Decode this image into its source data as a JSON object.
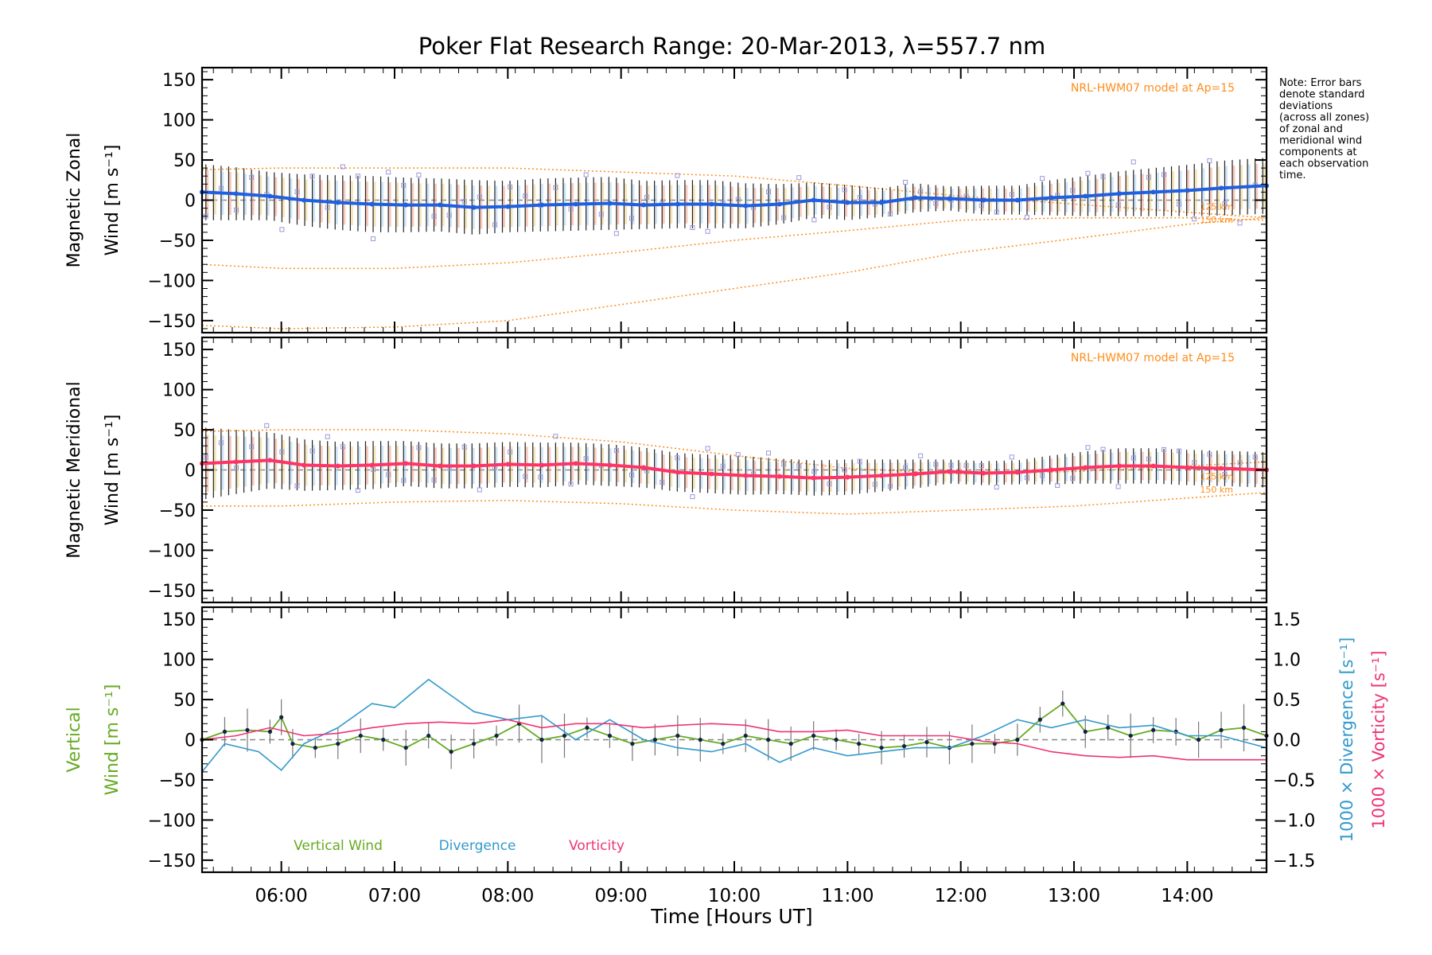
{
  "chart_data": {
    "type": "line",
    "title": "Poker Flat Research Range: 20-Mar-2013, λ=557.7 nm",
    "xlabel": "Time [Hours UT]",
    "xlim": [
      5.3,
      14.7
    ],
    "x_ticks": [
      6,
      7,
      8,
      9,
      10,
      11,
      12,
      13,
      14
    ],
    "x_tick_labels": [
      "06:00",
      "07:00",
      "08:00",
      "09:00",
      "10:00",
      "11:00",
      "12:00",
      "13:00",
      "14:00"
    ],
    "note": [
      "Note: Error bars",
      "denote standard",
      "deviations",
      "(across all zones)",
      "of zonal and",
      "meridional wind",
      "components at",
      "each observation",
      "time."
    ],
    "colors": {
      "zonal": "#1f5fe0",
      "meridional": "#ff3366",
      "vertical": "#66aa22",
      "divergence": "#3399cc",
      "vorticity": "#ee3377",
      "model": "#ff8c1a",
      "scatter": "#9999dd",
      "errbar": "#222222"
    },
    "panels": [
      {
        "id": "zonal",
        "ylabel": "Magnetic Zonal",
        "ylabel2": "Wind [m s⁻¹]",
        "ylim": [
          -165,
          165
        ],
        "y_ticks": [
          -150,
          -100,
          -50,
          0,
          50,
          100,
          150
        ],
        "y_tick_labels": [
          "−150",
          "−100",
          "−50",
          "0",
          "50",
          "100",
          "150"
        ],
        "model_label": "NRL-HWM07 model at Ap=15",
        "model_alt_labels": [
          "125 km",
          "150 km"
        ],
        "mean_series": {
          "name": "Zonal wind",
          "x": [
            5.3,
            5.6,
            5.9,
            6.2,
            6.5,
            6.8,
            7.1,
            7.4,
            7.7,
            8.0,
            8.3,
            8.6,
            8.9,
            9.2,
            9.5,
            9.8,
            10.1,
            10.4,
            10.7,
            11.0,
            11.3,
            11.6,
            11.9,
            12.2,
            12.5,
            12.8,
            13.1,
            13.4,
            13.7,
            14.0,
            14.3,
            14.7
          ],
          "y": [
            10,
            8,
            5,
            0,
            -3,
            -5,
            -6,
            -6,
            -9,
            -8,
            -6,
            -5,
            -4,
            -6,
            -5,
            -5,
            -7,
            -5,
            0,
            -3,
            -3,
            3,
            2,
            0,
            0,
            3,
            5,
            8,
            10,
            12,
            15,
            18
          ]
        },
        "error_bar_std": [
          35,
          33,
          30,
          32,
          34,
          35,
          34,
          33,
          34,
          32,
          33,
          33,
          33,
          30,
          30,
          30,
          28,
          25,
          22,
          22,
          18,
          18,
          15,
          18,
          18,
          22,
          25,
          28,
          30,
          32,
          34,
          35
        ],
        "model_curves": [
          {
            "x": [
              5.3,
              6.0,
              7.0,
              8.0,
              9.0,
              10.0,
              11.0,
              12.0,
              13.0,
              14.0,
              14.7
            ],
            "y": [
              38,
              40,
              40,
              40,
              35,
              30,
              18,
              5,
              -5,
              -15,
              -22
            ]
          },
          {
            "x": [
              5.3,
              6.0,
              7.0,
              8.0,
              9.0,
              10.0,
              11.0,
              12.0,
              13.0,
              14.0,
              14.7
            ],
            "y": [
              -80,
              -85,
              -85,
              -78,
              -65,
              -50,
              -38,
              -25,
              -22,
              -22,
              -25
            ]
          },
          {
            "x": [
              5.3,
              6.0,
              7.0,
              8.0,
              9.0,
              10.0,
              11.0,
              12.0,
              13.0,
              14.0,
              14.7
            ],
            "y": [
              -156,
              -160,
              -158,
              -150,
              -130,
              -110,
              -90,
              -65,
              -48,
              -30,
              -22
            ]
          }
        ]
      },
      {
        "id": "meridional",
        "ylabel": "Magnetic Meridional",
        "ylabel2": "Wind [m s⁻¹]",
        "ylim": [
          -165,
          165
        ],
        "y_ticks": [
          -150,
          -100,
          -50,
          0,
          50,
          100,
          150
        ],
        "y_tick_labels": [
          "−150",
          "−100",
          "−50",
          "0",
          "50",
          "100",
          "150"
        ],
        "model_label": "NRL-HWM07 model at Ap=15",
        "model_alt_labels": [
          "125 km",
          "150 km"
        ],
        "mean_series": {
          "name": "Meridional wind",
          "x": [
            5.3,
            5.6,
            5.9,
            6.2,
            6.5,
            6.8,
            7.1,
            7.4,
            7.7,
            8.0,
            8.3,
            8.6,
            8.9,
            9.2,
            9.5,
            9.8,
            10.1,
            10.4,
            10.7,
            11.0,
            11.3,
            11.6,
            11.9,
            12.2,
            12.5,
            12.8,
            13.1,
            13.4,
            13.7,
            14.0,
            14.3,
            14.7
          ],
          "y": [
            8,
            10,
            12,
            6,
            5,
            6,
            8,
            5,
            5,
            7,
            6,
            8,
            6,
            3,
            -3,
            -5,
            -7,
            -8,
            -10,
            -9,
            -7,
            -5,
            -2,
            -4,
            -3,
            0,
            3,
            5,
            5,
            3,
            2,
            0
          ]
        },
        "error_bar_std": [
          45,
          40,
          35,
          32,
          30,
          30,
          28,
          28,
          28,
          28,
          28,
          26,
          26,
          25,
          24,
          24,
          24,
          22,
          22,
          22,
          20,
          18,
          15,
          15,
          15,
          18,
          20,
          22,
          22,
          22,
          22,
          22
        ],
        "model_curves": [
          {
            "x": [
              5.3,
              6.0,
              7.0,
              8.0,
              9.0,
              10.0,
              11.0,
              12.0,
              13.0,
              14.0,
              14.7
            ],
            "y": [
              48,
              50,
              50,
              45,
              35,
              18,
              2,
              -5,
              -2,
              5,
              10
            ]
          },
          {
            "x": [
              5.3,
              6.0,
              7.0,
              8.0,
              9.0,
              10.0,
              11.0,
              12.0,
              13.0,
              14.0,
              14.7
            ],
            "y": [
              -45,
              -45,
              -40,
              -38,
              -42,
              -50,
              -55,
              -50,
              -45,
              -35,
              -28
            ]
          }
        ]
      },
      {
        "id": "vertical",
        "ylabel": "Vertical",
        "ylabel2": "Wind [m s⁻¹]",
        "ylim": [
          -165,
          165
        ],
        "y_ticks": [
          -150,
          -100,
          -50,
          0,
          50,
          100,
          150
        ],
        "y_tick_labels": [
          "−150",
          "−100",
          "−50",
          "0",
          "50",
          "100",
          "150"
        ],
        "y2_label": "1000 × Divergence [s⁻¹]",
        "y3_label": "1000 × Vorticity [s⁻¹]",
        "y2lim": [
          -1.65,
          1.65
        ],
        "y2_ticks": [
          -1.5,
          -1.0,
          -0.5,
          0.0,
          0.5,
          1.0,
          1.5
        ],
        "y2_tick_labels": [
          "−1.5",
          "−1.0",
          "−0.5",
          "0.0",
          "0.5",
          "1.0",
          "1.5"
        ],
        "legend": [
          "Vertical Wind",
          "Divergence",
          "Vorticity"
        ],
        "vertical_wind": {
          "x": [
            5.3,
            5.5,
            5.7,
            5.9,
            6.0,
            6.1,
            6.3,
            6.5,
            6.7,
            6.9,
            7.1,
            7.3,
            7.5,
            7.7,
            7.9,
            8.1,
            8.3,
            8.5,
            8.7,
            8.9,
            9.1,
            9.3,
            9.5,
            9.7,
            9.9,
            10.1,
            10.3,
            10.5,
            10.7,
            10.9,
            11.1,
            11.3,
            11.5,
            11.7,
            11.9,
            12.1,
            12.3,
            12.5,
            12.7,
            12.9,
            13.1,
            13.3,
            13.5,
            13.7,
            13.9,
            14.1,
            14.3,
            14.5,
            14.7
          ],
          "y": [
            0,
            10,
            12,
            10,
            28,
            -5,
            -10,
            -5,
            5,
            0,
            -10,
            5,
            -15,
            -5,
            5,
            20,
            0,
            5,
            15,
            5,
            -5,
            0,
            5,
            0,
            -5,
            5,
            0,
            -5,
            5,
            0,
            -5,
            -10,
            -8,
            -3,
            -10,
            -5,
            -5,
            0,
            25,
            45,
            10,
            15,
            5,
            12,
            10,
            0,
            12,
            15,
            5
          ]
        },
        "divergence": {
          "x": [
            5.3,
            5.5,
            5.8,
            6.0,
            6.2,
            6.5,
            6.8,
            7.0,
            7.3,
            7.5,
            7.7,
            8.0,
            8.3,
            8.6,
            8.9,
            9.2,
            9.5,
            9.8,
            10.1,
            10.4,
            10.7,
            11.0,
            11.3,
            11.6,
            11.9,
            12.2,
            12.5,
            12.8,
            13.1,
            13.4,
            13.7,
            14.0,
            14.3,
            14.7
          ],
          "y": [
            -0.4,
            -0.05,
            -0.15,
            -0.38,
            -0.05,
            0.15,
            0.45,
            0.4,
            0.75,
            0.55,
            0.35,
            0.25,
            0.3,
            0.0,
            0.25,
            0.0,
            -0.1,
            -0.15,
            -0.05,
            -0.28,
            -0.1,
            -0.2,
            -0.15,
            -0.1,
            -0.1,
            0.05,
            0.25,
            0.15,
            0.25,
            0.15,
            0.18,
            0.05,
            0.05,
            -0.1
          ]
        },
        "vorticity": {
          "x": [
            5.3,
            5.6,
            5.9,
            6.2,
            6.5,
            6.8,
            7.1,
            7.4,
            7.7,
            8.0,
            8.3,
            8.6,
            8.9,
            9.2,
            9.5,
            9.8,
            10.1,
            10.4,
            10.7,
            11.0,
            11.3,
            11.6,
            11.9,
            12.2,
            12.5,
            12.8,
            13.1,
            13.4,
            13.7,
            14.0,
            14.3,
            14.7
          ],
          "y": [
            0.0,
            0.05,
            0.15,
            0.05,
            0.08,
            0.15,
            0.2,
            0.22,
            0.2,
            0.25,
            0.15,
            0.2,
            0.2,
            0.15,
            0.18,
            0.2,
            0.18,
            0.1,
            0.1,
            0.12,
            0.05,
            0.05,
            0.05,
            -0.02,
            -0.05,
            -0.15,
            -0.2,
            -0.22,
            -0.2,
            -0.25,
            -0.25,
            -0.25
          ]
        }
      }
    ]
  }
}
